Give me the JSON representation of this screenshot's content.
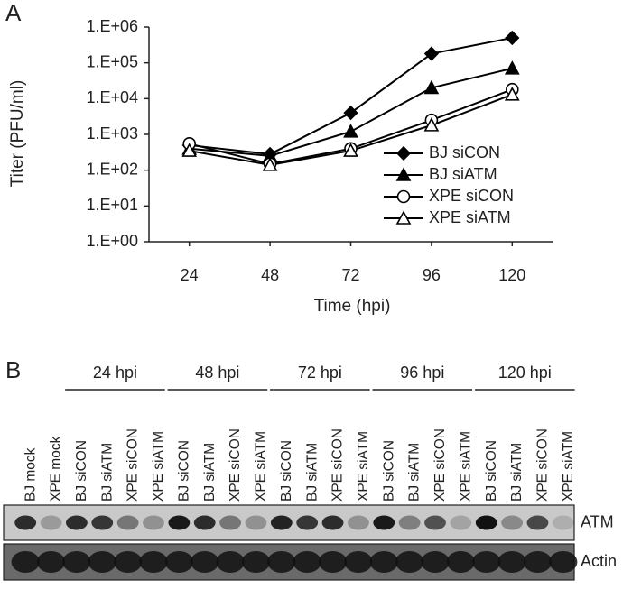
{
  "panel_a": {
    "label": "A"
  },
  "chart_data": {
    "type": "line",
    "xlabel": "Time (hpi)",
    "ylabel": "Titer (PFU/ml)",
    "x": [
      24,
      48,
      72,
      96,
      120
    ],
    "xlim": [
      12,
      132
    ],
    "xticks": [
      24,
      48,
      72,
      96,
      120
    ],
    "ylim": [
      1,
      1000000
    ],
    "log_y": true,
    "yticks": [
      {
        "value": 1,
        "label": "1.E+00"
      },
      {
        "value": 10,
        "label": "1.E+01"
      },
      {
        "value": 100,
        "label": "1.E+02"
      },
      {
        "value": 1000,
        "label": "1.E+03"
      },
      {
        "value": 10000,
        "label": "1.E+04"
      },
      {
        "value": 100000,
        "label": "1.E+05"
      },
      {
        "value": 1000000,
        "label": "1.E+06"
      }
    ],
    "legend": "right",
    "series": [
      {
        "name": "BJ siCON",
        "color": "#000000",
        "marker": "diamond",
        "filled": true,
        "values": [
          500,
          280,
          4000,
          180000,
          500000
        ]
      },
      {
        "name": "BJ siATM",
        "color": "#000000",
        "marker": "triangle",
        "filled": true,
        "values": [
          400,
          250,
          1200,
          20000,
          70000
        ]
      },
      {
        "name": "XPE siCON",
        "color": "#000000",
        "marker": "circle",
        "filled": false,
        "values": [
          550,
          150,
          400,
          2500,
          18000
        ]
      },
      {
        "name": "XPE siATM",
        "color": "#000000",
        "marker": "triangle",
        "filled": false,
        "values": [
          350,
          140,
          350,
          1800,
          13000
        ]
      }
    ]
  },
  "panel_b": {
    "label": "B",
    "groups": [
      "24 hpi",
      "48 hpi",
      "72 hpi",
      "96 hpi",
      "120 hpi"
    ],
    "lanes": [
      "BJ mock",
      "XPE mock",
      "BJ siCON",
      "BJ siATM",
      "XPE siCON",
      "XPE siATM",
      "BJ siCON",
      "BJ siATM",
      "XPE siCON",
      "XPE siATM",
      "BJ siCON",
      "BJ siATM",
      "XPE siCON",
      "XPE siATM",
      "BJ siCON",
      "BJ siATM",
      "XPE siCON",
      "XPE siATM",
      "BJ siCON",
      "BJ siATM",
      "XPE siCON",
      "XPE siATM"
    ],
    "rows": [
      "ATM",
      "Actin"
    ]
  }
}
